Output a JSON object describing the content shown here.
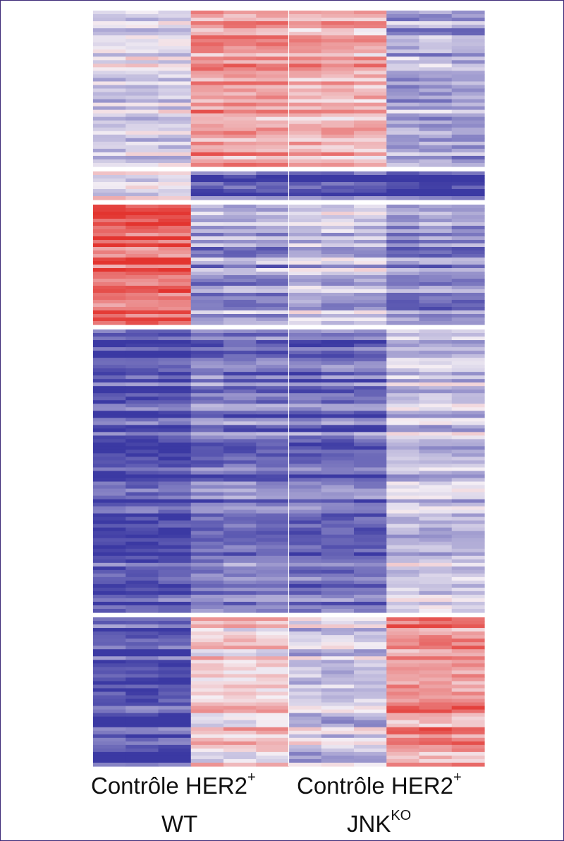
{
  "chart_data": {
    "type": "heatmap",
    "title": "",
    "xlabel": "",
    "ylabel": "",
    "colors": {
      "low": "#3b39a3",
      "mid": "#f4eef4",
      "high": "#e3342f"
    },
    "groups": [
      {
        "genotype": "WT",
        "conditions": [
          "Contrôle",
          "HER2+"
        ],
        "replicates": 3
      },
      {
        "genotype": "JNKKO",
        "conditions": [
          "Contrôle",
          "HER2+"
        ],
        "replicates": 3
      }
    ],
    "column_order": [
      "WT Contrôle 1",
      "WT Contrôle 2",
      "WT Contrôle 3",
      "WT HER2+ 1",
      "WT HER2+ 2",
      "WT HER2+ 3",
      "JNKKO Contrôle 1",
      "JNKKO Contrôle 2",
      "JNKKO Contrôle 3",
      "JNKKO HER2+ 1",
      "JNKKO HER2+ 2",
      "JNKKO HER2+ 3"
    ],
    "value_range": [
      -2,
      2
    ],
    "clusters": [
      {
        "id": 1,
        "mean_by_column_group": [
          -0.3,
          0.9,
          0.7,
          -0.8
        ],
        "gene_weight": 22
      },
      {
        "id": 2,
        "mean_by_column_group": [
          0.1,
          -1.4,
          -1.5,
          -1.7
        ],
        "gene_weight": 4
      },
      {
        "id": 3,
        "mean_by_column_group": [
          1.5,
          -0.9,
          -0.5,
          -1.1
        ],
        "gene_weight": 17
      },
      {
        "id": 4,
        "mean_by_column_group": [
          -1.7,
          -1.3,
          -1.4,
          -0.5
        ],
        "gene_weight": 40
      },
      {
        "id": 5,
        "mean_by_column_group": [
          -1.7,
          0.3,
          -0.4,
          1.0
        ],
        "gene_weight": 21
      }
    ]
  },
  "labels": {
    "left_conditions": {
      "control": "Contrôle",
      "her2": "HER2",
      "her2_sup": "+"
    },
    "left_genotype": "WT",
    "right_conditions": {
      "control": "Contrôle",
      "her2": "HER2",
      "her2_sup": "+"
    },
    "right_genotype_base": "JNK",
    "right_genotype_sup": "KO"
  }
}
